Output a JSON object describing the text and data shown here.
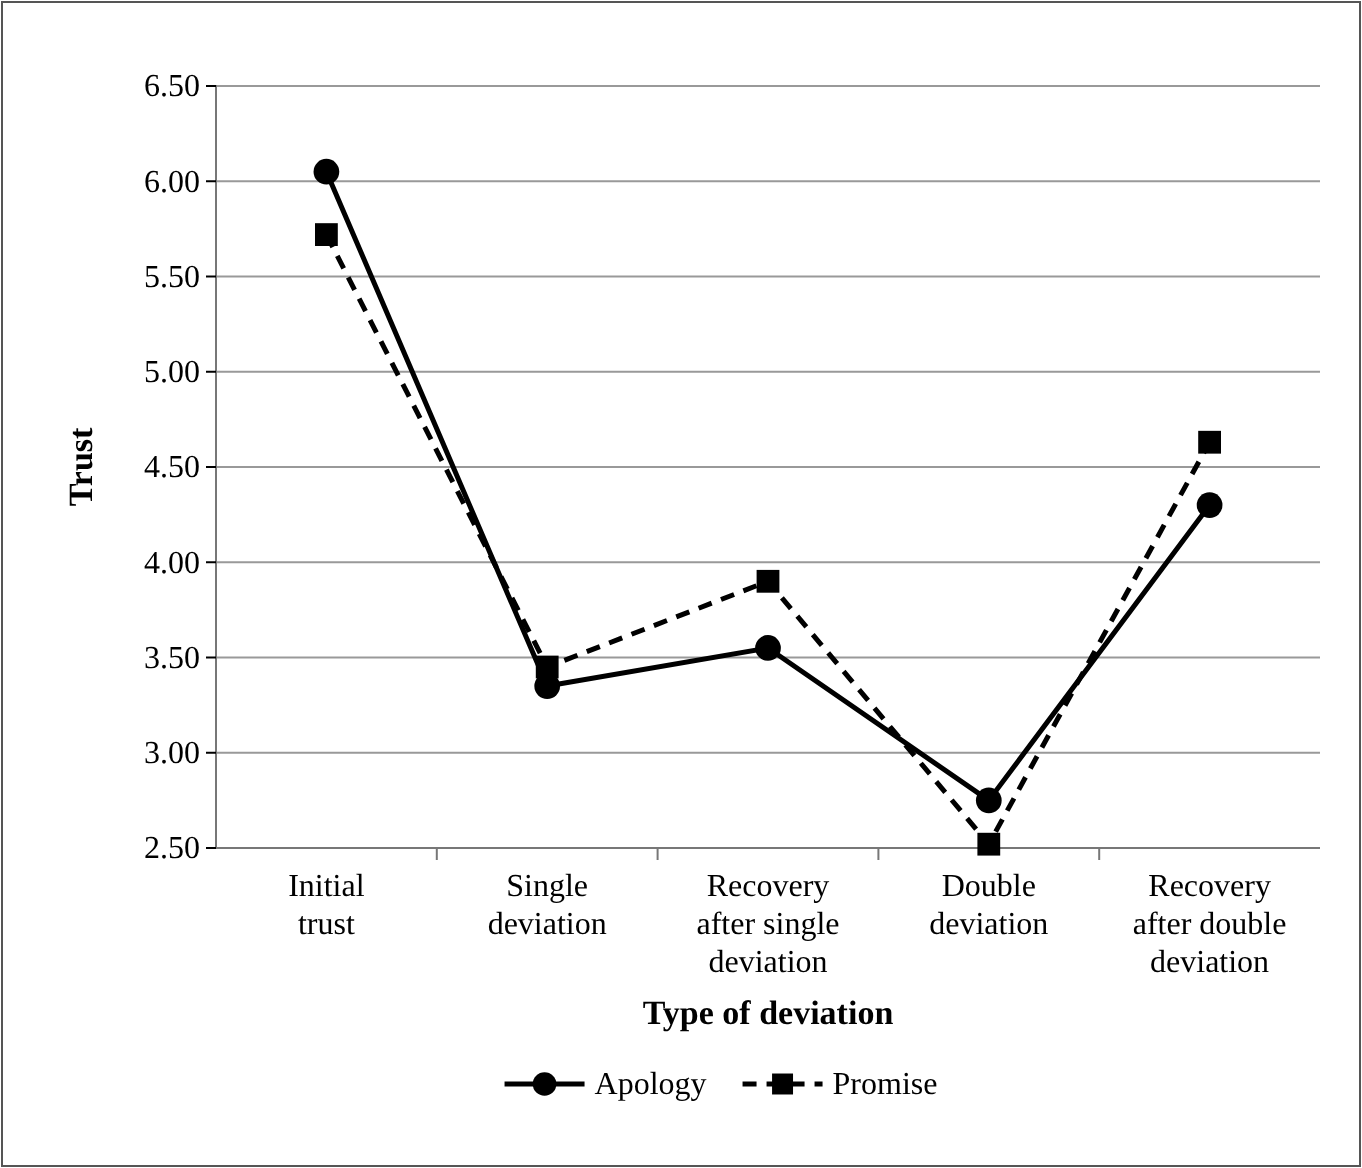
{
  "chart_data": {
    "type": "line",
    "xlabel": "Type of deviation",
    "ylabel": "Trust",
    "categories": [
      "Initial trust",
      "Single deviation",
      "Recovery after single deviation",
      "Double deviation",
      "Recovery after double deviation"
    ],
    "series": [
      {
        "name": "Apology",
        "color": "#000000",
        "values": [
          6.05,
          3.35,
          3.55,
          2.75,
          4.3
        ],
        "marker": "circle",
        "line_style": "solid"
      },
      {
        "name": "Promise",
        "color": "#000000",
        "values": [
          5.72,
          3.45,
          3.9,
          2.52,
          4.63
        ],
        "marker": "square",
        "line_style": "dashed"
      }
    ],
    "ylim": [
      2.5,
      6.5
    ],
    "yticks": [
      {
        "value": 2.5,
        "label": "2.50"
      },
      {
        "value": 3,
        "label": "3.00"
      },
      {
        "value": 3.5,
        "label": "3.50"
      },
      {
        "value": 4,
        "label": "4.00"
      },
      {
        "value": 4.5,
        "label": "4.50"
      },
      {
        "value": 5,
        "label": "5.00"
      },
      {
        "value": 5.5,
        "label": "5.50"
      },
      {
        "value": 6,
        "label": "6.00"
      },
      {
        "value": 6.5,
        "label": "6.50"
      }
    ],
    "grid": "y",
    "legend": "bottom"
  }
}
